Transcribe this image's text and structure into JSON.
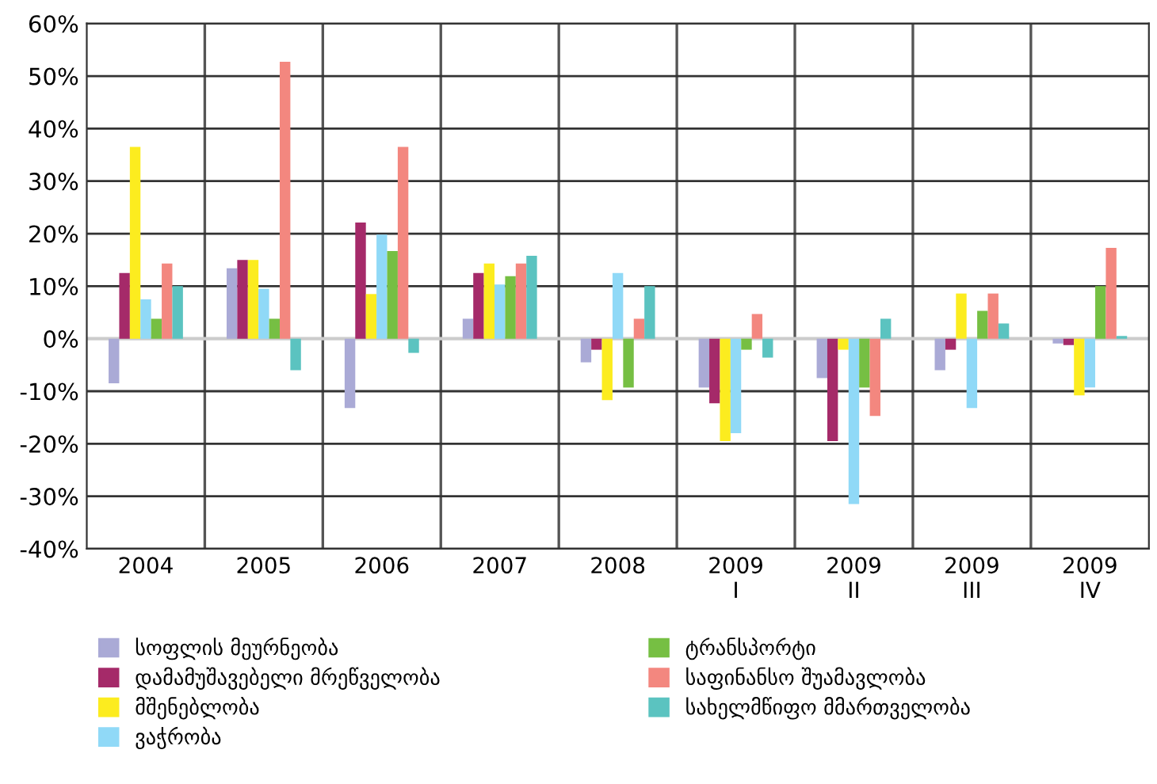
{
  "chart_data": {
    "type": "bar",
    "categories": [
      "2004",
      "2005",
      "2006",
      "2007",
      "2008",
      "2009\nI",
      "2009\nII",
      "2009\nIII",
      "2009\nIV"
    ],
    "series": [
      {
        "name": "სოფლის მეურნეობა",
        "color": "#aaaad6",
        "values": [
          -8.5,
          13.4,
          -13.2,
          3.8,
          -4.5,
          -9.3,
          -7.5,
          -6,
          -0.9
        ]
      },
      {
        "name": "დამამუშავებელი მრეწველობა",
        "color": "#a52a69",
        "values": [
          12.5,
          15,
          22.1,
          12.5,
          -2.1,
          -12.3,
          -19.5,
          -2.1,
          -1.2
        ]
      },
      {
        "name": "მშენებლობა",
        "color": "#fcec1f",
        "values": [
          36.5,
          15,
          8.5,
          14.3,
          -11.7,
          -19.5,
          -2.1,
          8.6,
          -10.8
        ]
      },
      {
        "name": "ვაჭრობა",
        "color": "#90d9f7",
        "values": [
          7.5,
          9.5,
          19.8,
          10.3,
          12.5,
          -18,
          -31.5,
          -13.2,
          -9.3
        ]
      },
      {
        "name": "ტრანსპორტი",
        "color": "#76bf43",
        "values": [
          3.8,
          3.8,
          16.7,
          11.9,
          -9.3,
          -2.1,
          -9.3,
          5.3,
          10
        ]
      },
      {
        "name": "საფინანსო შუამავლობა",
        "color": "#f3877f",
        "values": [
          14.3,
          52.7,
          36.5,
          14.3,
          3.8,
          4.7,
          -14.7,
          8.6,
          17.3
        ]
      },
      {
        "name": "სახელმწიფო მმართველობა",
        "color": "#5bc3c0",
        "values": [
          10,
          -6,
          -2.7,
          15.8,
          10,
          -3.6,
          3.8,
          2.9,
          0.5
        ]
      }
    ],
    "ylim": [
      -40,
      60
    ],
    "yticks": [
      {
        "value": -40,
        "label": "-40%"
      },
      {
        "value": -30,
        "label": "-30%"
      },
      {
        "value": -20,
        "label": "-20%"
      },
      {
        "value": -10,
        "label": "-10%"
      },
      {
        "value": 0,
        "label": "0%"
      },
      {
        "value": 10,
        "label": "10%"
      },
      {
        "value": 20,
        "label": "20%"
      },
      {
        "value": 30,
        "label": "30%"
      },
      {
        "value": 40,
        "label": "40%"
      },
      {
        "value": 50,
        "label": "50%"
      },
      {
        "value": 60,
        "label": "60%"
      }
    ],
    "grid": true,
    "legend": "bottom"
  }
}
